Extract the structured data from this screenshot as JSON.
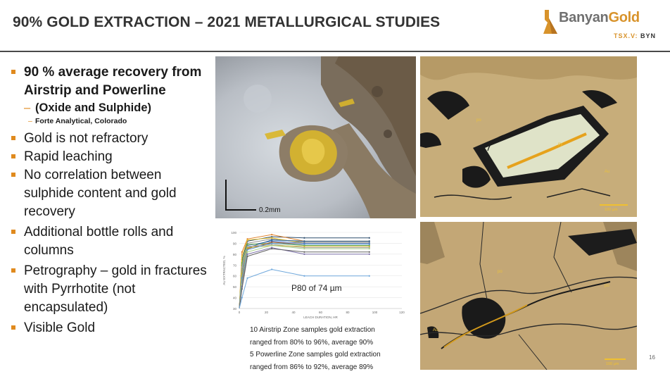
{
  "title": "90% GOLD EXTRACTION – 2021 METALLURGICAL STUDIES",
  "logo": {
    "name_part1": "Banyan",
    "name_part2": "Gold",
    "ticker_prefix": "TSX.V:",
    "ticker": "BYN"
  },
  "bullets": [
    {
      "text": "90 % average recovery from Airstrip and Powerline",
      "bold": true
    },
    {
      "text": "Gold is not refractory"
    },
    {
      "text": "Rapid leaching"
    },
    {
      "text": "No correlation between sulphide content and gold recovery"
    },
    {
      "text": "Additional bottle rolls and columns"
    },
    {
      "text": "Petrography – gold in fractures with Pyrrhotite (not encapsulated)"
    },
    {
      "text": "Visible Gold"
    }
  ],
  "sub_bullet": "(Oxide and Sulphide)",
  "subsub_bullet": "Forte Analytical, Colorado",
  "photo1": {
    "scale": "0.2mm"
  },
  "photo2": {
    "label_au": "Au",
    "scale": "100 µm",
    "label_po": "po",
    "label_py": "py"
  },
  "photo3": {
    "label_au": "Au",
    "scale": "100 µm",
    "label_po": "po",
    "label_py": "po"
  },
  "chart_data": {
    "type": "line",
    "xlabel": "LEACH DURATION, HR",
    "ylabel": "AU EXTRACTED, %",
    "xlim": [
      0,
      120
    ],
    "ylim": [
      30,
      100
    ],
    "xticks": [
      0,
      20,
      40,
      60,
      80,
      100,
      120
    ],
    "yticks": [
      30,
      40,
      50,
      60,
      70,
      80,
      90,
      100
    ],
    "annotation": "P80 of 74 µm",
    "x": [
      0,
      2,
      6,
      24,
      48,
      96
    ],
    "series": [
      {
        "color": "#2f4f6f",
        "values": [
          30,
          75,
          92,
          96,
          95,
          95
        ]
      },
      {
        "color": "#e0822a",
        "values": [
          30,
          82,
          94,
          98,
          92,
          92
        ]
      },
      {
        "color": "#8c8c8c",
        "values": [
          30,
          70,
          90,
          94,
          91,
          91
        ]
      },
      {
        "color": "#e8c22a",
        "values": [
          30,
          78,
          93,
          95,
          90,
          90
        ]
      },
      {
        "color": "#4472c4",
        "values": [
          30,
          65,
          88,
          92,
          90,
          90
        ]
      },
      {
        "color": "#70ad47",
        "values": [
          30,
          72,
          89,
          90,
          88,
          88
        ]
      },
      {
        "color": "#255e91",
        "values": [
          30,
          60,
          86,
          93,
          92,
          92
        ]
      },
      {
        "color": "#9e480e",
        "values": [
          30,
          55,
          85,
          91,
          89,
          89
        ]
      },
      {
        "color": "#a5a5a5",
        "values": [
          30,
          68,
          87,
          89,
          86,
          86
        ]
      },
      {
        "color": "#c9b037",
        "values": [
          30,
          62,
          86,
          88,
          87,
          87
        ]
      },
      {
        "color": "#5b9bd5",
        "values": [
          30,
          58,
          84,
          90,
          89,
          89
        ]
      },
      {
        "color": "#a9d18e",
        "values": [
          30,
          52,
          82,
          88,
          85,
          85
        ]
      },
      {
        "color": "#7b6fa8",
        "values": [
          30,
          50,
          80,
          86,
          80,
          80
        ]
      },
      {
        "color": "#636363",
        "values": [
          30,
          48,
          78,
          85,
          82,
          82
        ]
      },
      {
        "color": "#6fa8dc",
        "values": [
          30,
          40,
          58,
          66,
          60,
          60
        ]
      }
    ]
  },
  "caption": [
    "10 Airstrip Zone samples gold extraction",
    "ranged from 80% to 96%, average 90%",
    "5 Powerline Zone samples gold extraction",
    "ranged from 86% to 92%, average 89%"
  ],
  "page_number": "16"
}
